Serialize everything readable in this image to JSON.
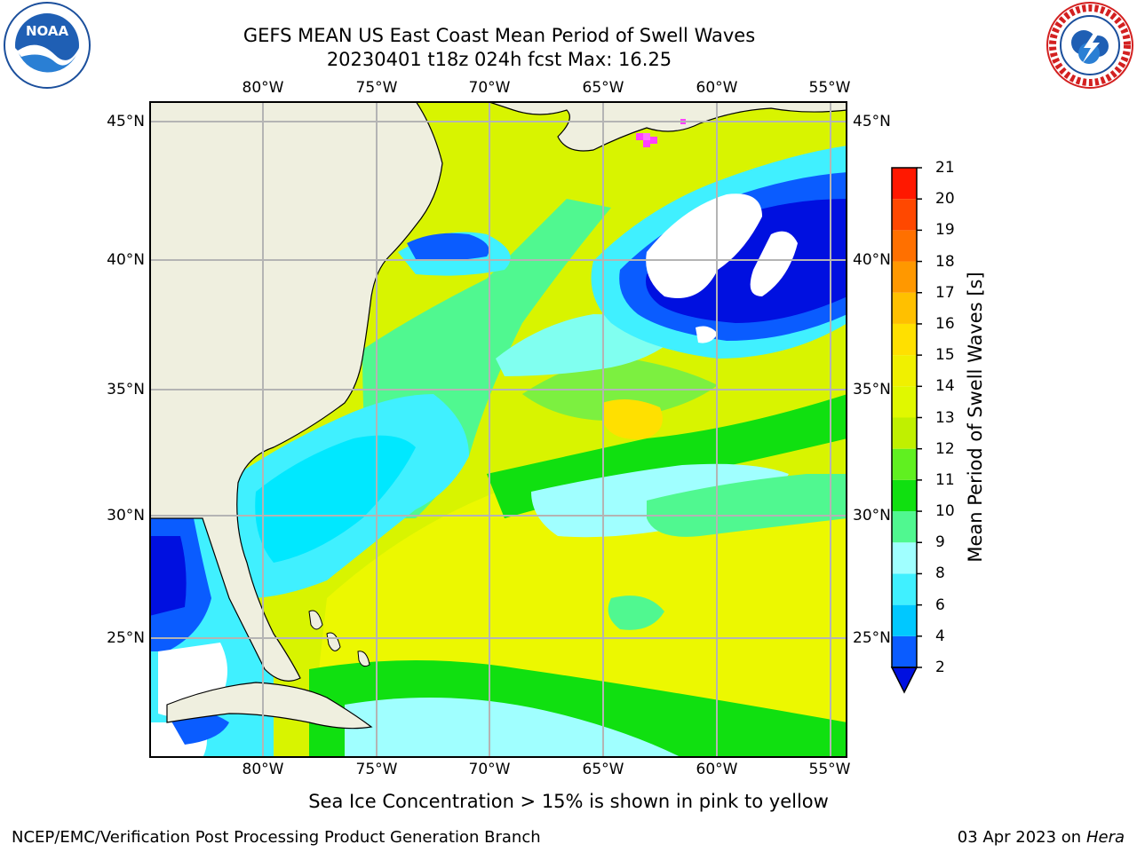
{
  "title": {
    "line1": "GEFS MEAN US East Coast Mean Period of Swell Waves",
    "line2": "20230401 t18z 024h fcst   Max: 16.25"
  },
  "map": {
    "lon_ticks": [
      "80°W",
      "75°W",
      "70°W",
      "65°W",
      "60°W",
      "55°W"
    ],
    "lat_ticks": [
      "45°N",
      "40°N",
      "35°N",
      "30°N",
      "25°N"
    ],
    "land_color": "#efefdf",
    "grid_color": "#b4b4b4"
  },
  "colorbar": {
    "label": "Mean Period of Swell Waves [s]",
    "tick_labels": [
      "2",
      "4",
      "6",
      "8",
      "9",
      "10",
      "11",
      "12",
      "13",
      "14",
      "15",
      "16",
      "17",
      "18",
      "19",
      "20",
      "21"
    ],
    "colors": [
      "#0a5cff",
      "#00c8ff",
      "#40f0ff",
      "#a0ffff",
      "#50f890",
      "#10e010",
      "#60f020",
      "#c0f000",
      "#e0f800",
      "#f0f000",
      "#ffe000",
      "#ffc000",
      "#ff9800",
      "#ff7000",
      "#ff4800",
      "#ff1800"
    ],
    "under_color": "#0010e0"
  },
  "caption": "Sea Ice Concentration > 15% is shown in pink to yellow",
  "footer": {
    "left": "NCEP/EMC/Verification Post Processing Product Generation Branch",
    "date": "03 Apr 2023 on ",
    "machine": "Hera"
  },
  "logos": {
    "left": "NOAA",
    "right": "NATIONAL WEATHER SERVICE"
  }
}
